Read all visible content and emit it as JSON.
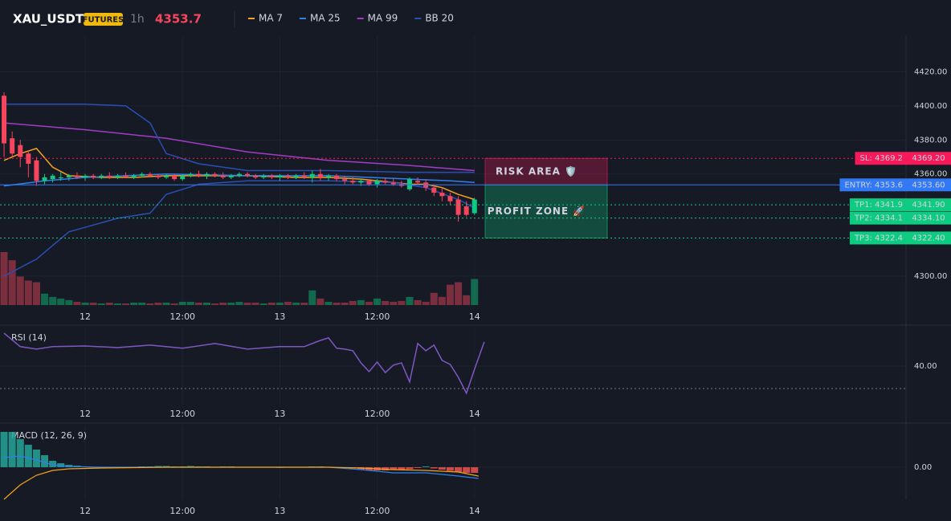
{
  "header": {
    "symbol": "XAU_USDT",
    "badge": "FUTURES",
    "interval": "1h",
    "price": 4353.7
  },
  "chart_data": [
    {
      "type": "candlestick",
      "x": [
        0,
        1,
        2,
        3,
        4,
        5,
        6,
        7,
        8,
        9,
        10,
        11,
        12,
        13,
        14,
        15,
        16,
        17,
        18,
        19,
        20,
        21,
        22,
        23,
        24,
        25,
        26,
        27,
        28,
        29,
        30,
        31,
        32,
        33,
        34,
        35,
        36,
        37,
        38,
        39,
        40,
        41,
        42,
        43,
        44,
        45,
        46,
        47,
        48,
        49,
        50,
        51,
        52,
        53,
        54,
        55,
        56,
        57,
        58
      ],
      "open": [
        4406,
        4381,
        4377,
        4372,
        4368,
        4356,
        4357,
        4358,
        4358,
        4359,
        4358,
        4359,
        4358,
        4359,
        4358,
        4359,
        4358,
        4359,
        4360,
        4359,
        4358,
        4359,
        4357,
        4359,
        4360,
        4359,
        4360,
        4359,
        4358,
        4359,
        4360,
        4359,
        4358,
        4359,
        4358,
        4359,
        4358,
        4359,
        4358,
        4360,
        4358,
        4359,
        4357,
        4356,
        4355,
        4356,
        4354,
        4356,
        4355,
        4354,
        4351,
        4356,
        4355,
        4352,
        4349,
        4347,
        4345,
        4341,
        4337
      ],
      "high": [
        4408,
        4385,
        4380,
        4374,
        4370,
        4360,
        4360,
        4361,
        4360,
        4361,
        4360,
        4360,
        4360,
        4361,
        4360,
        4361,
        4360,
        4361,
        4361,
        4360,
        4360,
        4360,
        4360,
        4361,
        4362,
        4361,
        4361,
        4361,
        4360,
        4361,
        4361,
        4360,
        4360,
        4360,
        4360,
        4360,
        4360,
        4361,
        4362,
        4363,
        4360,
        4360,
        4359,
        4358,
        4357,
        4357,
        4357,
        4358,
        4357,
        4356,
        4358,
        4358,
        4357,
        4354,
        4352,
        4349,
        4347,
        4344,
        4346
      ],
      "low": [
        4370,
        4370,
        4364,
        4358,
        4353,
        4354,
        4355,
        4356,
        4356,
        4357,
        4356,
        4357,
        4357,
        4357,
        4357,
        4358,
        4357,
        4358,
        4358,
        4357,
        4357,
        4356,
        4356,
        4358,
        4358,
        4357,
        4358,
        4357,
        4357,
        4358,
        4358,
        4357,
        4357,
        4357,
        4356,
        4357,
        4357,
        4357,
        4355,
        4356,
        4356,
        4356,
        4354,
        4354,
        4353,
        4353,
        4352,
        4354,
        4353,
        4352,
        4350,
        4354,
        4350,
        4347,
        4344,
        4342,
        4332,
        4335,
        4336
      ],
      "close": [
        4378,
        4372,
        4370,
        4366,
        4356,
        4358,
        4359,
        4358,
        4359,
        4358,
        4359,
        4358,
        4359,
        4358,
        4359,
        4358,
        4359,
        4360,
        4359,
        4358,
        4359,
        4357,
        4359,
        4360,
        4359,
        4360,
        4359,
        4358,
        4359,
        4360,
        4359,
        4358,
        4359,
        4358,
        4359,
        4358,
        4359,
        4358,
        4360,
        4358,
        4359,
        4357,
        4356,
        4355,
        4356,
        4354,
        4356,
        4355,
        4354,
        4353,
        4357,
        4355,
        4352,
        4349,
        4347,
        4344,
        4336,
        4336,
        4345
      ],
      "volume": [
        65,
        55,
        35,
        30,
        28,
        14,
        10,
        8,
        6,
        4,
        3,
        3,
        2,
        3,
        2,
        2,
        3,
        3,
        2,
        3,
        3,
        2,
        4,
        4,
        3,
        3,
        2,
        3,
        3,
        4,
        3,
        3,
        2,
        3,
        3,
        4,
        3,
        3,
        18,
        8,
        4,
        3,
        3,
        5,
        6,
        4,
        8,
        5,
        4,
        5,
        10,
        6,
        4,
        15,
        10,
        25,
        28,
        12,
        32
      ],
      "up_color": "#0ecb81",
      "down_color": "#f6465d",
      "series": [
        {
          "name": "MA 7",
          "color": "#f7a21b",
          "x": [
            0,
            2,
            4,
            6,
            8,
            12,
            16,
            20,
            24,
            30,
            36,
            40,
            44,
            48,
            50,
            52,
            54,
            56,
            58
          ],
          "values": [
            4368,
            4372,
            4375,
            4364,
            4359,
            4358,
            4358,
            4359,
            4359,
            4359,
            4358,
            4358,
            4357,
            4355,
            4354,
            4354,
            4352,
            4348,
            4345
          ]
        },
        {
          "name": "MA 25",
          "color": "#2f7ff0",
          "x": [
            0,
            5,
            10,
            20,
            30,
            40,
            50,
            55,
            58
          ],
          "values": [
            4353,
            4356,
            4358,
            4360,
            4359,
            4359,
            4357,
            4356,
            4355
          ]
        },
        {
          "name": "MA 99",
          "color": "#a43bc7",
          "x": [
            0,
            10,
            20,
            30,
            40,
            50,
            58
          ],
          "values": [
            4390,
            4386,
            4381,
            4373,
            4368,
            4365,
            4362
          ]
        },
        {
          "name": "BB 20",
          "color": "#2a4fb5",
          "x": [
            0,
            5,
            10,
            15,
            18,
            20,
            24,
            30,
            40,
            50,
            58
          ],
          "values": [
            4401,
            4401,
            4401,
            4400,
            4390,
            4372,
            4366,
            4362,
            4362,
            4361,
            4361
          ]
        },
        {
          "color": "#2a4fb5",
          "x": [
            0,
            4,
            8,
            14,
            18,
            20,
            24,
            30,
            40,
            48,
            52,
            56,
            58
          ],
          "values": [
            4300,
            4310,
            4326,
            4334,
            4337,
            4348,
            4354,
            4356,
            4356,
            4355,
            4352,
            4345,
            4340
          ]
        }
      ],
      "xlim": [
        -0.5,
        111.2
      ],
      "ylim": [
        4283,
        4441
      ],
      "xticks": [
        {
          "value": 10,
          "label": "12"
        },
        {
          "value": 22,
          "label": "12:00"
        },
        {
          "value": 34,
          "label": "13"
        },
        {
          "value": 46,
          "label": "12:00"
        },
        {
          "value": 58,
          "label": "14"
        }
      ],
      "yticks": [
        {
          "value": 4420,
          "label": "4420.00"
        },
        {
          "value": 4400,
          "label": "4400.00"
        },
        {
          "value": 4380,
          "label": "4380.00"
        },
        {
          "value": 4360,
          "label": "4360.00"
        },
        {
          "value": 4300,
          "label": "4300.00"
        }
      ],
      "grid": true,
      "levels": [
        {
          "value": 4369.2,
          "label": "SL: 4369.2",
          "value_label": "4369.20",
          "color": "#f7195a",
          "style": "dotted"
        },
        {
          "value": 4353.6,
          "label": "ENTRY: 4353.6",
          "value_label": "4353.60",
          "color": "#3179f5",
          "style": "solid"
        },
        {
          "value": 4341.9,
          "label": "TP1: 4341.9",
          "value_label": "4341.90",
          "color": "#0ecb81",
          "style": "dotted"
        },
        {
          "value": 4334.1,
          "label": "TP2: 4334.1",
          "value_label": "4334.10",
          "color": "#0ecb81",
          "style": "dotted"
        },
        {
          "value": 4322.4,
          "label": "TP3: 4322.4",
          "value_label": "4322.40",
          "color": "#0ecb81",
          "style": "dotted"
        }
      ],
      "zones": [
        {
          "label": "RISK AREA 🛡️",
          "from": 4353.6,
          "to": 4369.2,
          "color": "#f7195a"
        },
        {
          "label": "PROFIT ZONE 🚀",
          "from": 4322.4,
          "to": 4353.6,
          "color": "#0ecb81"
        }
      ]
    },
    {
      "type": "line",
      "title": "RSI (14)",
      "color": "#7e57c2",
      "x": [
        0,
        2,
        4,
        6,
        10,
        14,
        18,
        22,
        26,
        30,
        34,
        37,
        39,
        40,
        41,
        42,
        43,
        44,
        45,
        46,
        47,
        48,
        49,
        50,
        51,
        52,
        53,
        54,
        55,
        56,
        57,
        58,
        59.2
      ],
      "values": [
        54.6,
        48.6,
        47.5,
        48.6,
        48.9,
        48.2,
        49.3,
        47.9,
        50,
        47.5,
        48.6,
        48.6,
        51.4,
        52.5,
        47.9,
        47.5,
        46.8,
        41.4,
        37.5,
        41.8,
        37.1,
        40.4,
        41.4,
        32.9,
        50,
        46.8,
        49.3,
        42.5,
        40.7,
        35,
        27.9,
        38.6,
        50.7
      ],
      "reference_line": 30,
      "xlim": [
        -0.5,
        111.2
      ],
      "ylim": [
        22.5,
        57.1
      ],
      "xticks": [
        {
          "value": 10,
          "label": "12"
        },
        {
          "value": 22,
          "label": "12:00"
        },
        {
          "value": 34,
          "label": "13"
        },
        {
          "value": 46,
          "label": "12:00"
        },
        {
          "value": 58,
          "label": "14"
        }
      ],
      "yticks": [
        {
          "value": 40,
          "label": "40.00"
        }
      ],
      "grid": true
    },
    {
      "type": "bar",
      "title": "MACD (12, 26, 9)",
      "positive_color": "#26a69a",
      "negative_color": "#ef5350",
      "x": [
        0,
        1,
        2,
        3,
        4,
        5,
        6,
        7,
        8,
        9,
        10,
        11,
        12,
        13,
        14,
        15,
        16,
        17,
        18,
        19,
        20,
        21,
        22,
        23,
        24,
        25,
        26,
        27,
        28,
        29,
        30,
        31,
        32,
        33,
        34,
        35,
        36,
        37,
        38,
        39,
        40,
        41,
        42,
        43,
        44,
        45,
        46,
        47,
        48,
        49,
        50,
        51,
        52,
        53,
        54,
        55,
        56,
        57,
        58
      ],
      "values": [
        8.8,
        8.8,
        7.0,
        5.6,
        4.4,
        3.0,
        1.6,
        1.0,
        0.6,
        0.4,
        0.2,
        0.1,
        -0.1,
        -0.2,
        -0.2,
        -0.1,
        0.1,
        0.2,
        0.2,
        0.3,
        0.3,
        0.2,
        0.2,
        0.3,
        0.2,
        0.2,
        0.1,
        0.2,
        0.2,
        0.1,
        0.1,
        0.1,
        0.1,
        0.1,
        0.0,
        0.1,
        0.1,
        0.1,
        0.2,
        0.2,
        0.1,
        0.0,
        -0.2,
        -0.3,
        -0.6,
        -0.8,
        -0.8,
        -0.8,
        -0.7,
        -0.6,
        -0.5,
        -0.2,
        0.2,
        -0.3,
        -0.6,
        -0.9,
        -1.2,
        -1.4,
        -1.4
      ],
      "series": [
        {
          "color": "#2f7ff0",
          "x": [
            0,
            2,
            4,
            6,
            8,
            12,
            20,
            30,
            40,
            44,
            48,
            52,
            56,
            58.5
          ],
          "values": [
            2.4,
            2.8,
            1.8,
            0.6,
            0.2,
            0,
            0,
            0,
            0,
            -0.6,
            -1.4,
            -1.4,
            -2.2,
            -2.8
          ]
        },
        {
          "color": "#f7a21b",
          "x": [
            0,
            2,
            4,
            6,
            8,
            12,
            20,
            30,
            40,
            44,
            48,
            52,
            56,
            58.5
          ],
          "values": [
            -8,
            -4.4,
            -2,
            -0.8,
            -0.4,
            -0.2,
            0,
            0,
            0,
            -0.2,
            -0.6,
            -0.8,
            -1.2,
            -2.2
          ]
        }
      ],
      "xlim": [
        -0.5,
        111.2
      ],
      "ylim": [
        -8,
        10.4
      ],
      "xticks": [
        {
          "value": 10,
          "label": "12"
        },
        {
          "value": 22,
          "label": "12:00"
        },
        {
          "value": 34,
          "label": "13"
        },
        {
          "value": 46,
          "label": "12:00"
        },
        {
          "value": 58,
          "label": "14"
        }
      ],
      "yticks": [
        {
          "value": 0,
          "label": "0.00"
        }
      ],
      "grid": true
    }
  ]
}
